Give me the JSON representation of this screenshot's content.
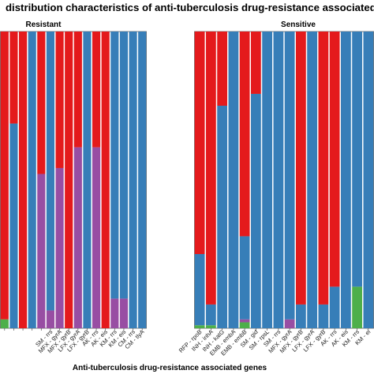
{
  "chart_data": {
    "type": "bar",
    "stacked": true,
    "normalized": true,
    "title": "distribution characteristics of anti-tuberculosis drug-resistance associated genes",
    "xlabel": "Anti-tuberculosis drug-resistance associated genes",
    "ylim": [
      0,
      1
    ],
    "grid": false,
    "panels": [
      {
        "name": "Resistant",
        "categories": [
          "",
          "",
          "",
          "",
          "",
          "SM - rrs",
          "MFX - gyrA",
          "MFX - gyrB",
          "LFX - gyrA",
          "LFX - gyrB",
          "AK - rrs",
          "AK - eis",
          "KM - rrs",
          "KM - eis",
          "CM - rrs",
          "CM - tlyA"
        ],
        "tick_labels": [
          "",
          "",
          "",
          "",
          "",
          "SM - rrs",
          "MFX - gyrA",
          "MFX - gyrB",
          "LFX - gyrA",
          "LFX - gyrB",
          "AK - rrs",
          "AK - eis",
          "KM - rrs",
          "KM - eis",
          "CM - rrs",
          "CM - tlyA"
        ],
        "series": [
          {
            "color": "#4daf4a",
            "values": [
              0.03,
              0,
              0,
              0,
              0,
              0,
              0,
              0,
              0,
              0,
              0,
              0,
              0,
              0,
              0,
              0
            ]
          },
          {
            "color": "#984ea3",
            "values": [
              0,
              0,
              0,
              0,
              0.52,
              0.06,
              0.54,
              0,
              0.61,
              0,
              0.61,
              0,
              0.1,
              0.1,
              0,
              0
            ]
          },
          {
            "color": "#377eb8",
            "values": [
              0,
              0.69,
              0,
              1.0,
              0,
              0.94,
              0,
              0,
              0,
              1.0,
              0,
              0,
              0.9,
              0.9,
              1.0,
              1.0
            ]
          },
          {
            "color": "#e41a1c",
            "values": [
              0.97,
              0.31,
              1.0,
              0,
              0.48,
              0,
              0.46,
              1.0,
              0.39,
              0,
              0.39,
              1.0,
              0,
              0,
              0,
              0
            ]
          }
        ]
      },
      {
        "name": "Sensitive",
        "categories": [
          "RFP - rpoB",
          "INH - inhA",
          "INH - katG",
          "EMB - embA",
          "EMB - embB",
          "SM - gid",
          "SM - rpsL",
          "SM - rrs",
          "MFX - gyrA",
          "MFX - gyrB",
          "LFX - gyrA",
          "LFX - gyrB",
          "AK - rrs",
          "AK - eis",
          "KM - rrs",
          "KM - eis"
        ],
        "tick_labels": [
          "RFP - rpoB",
          "INH - inhA",
          "INH - katG",
          "EMB - embA",
          "EMB - embB",
          "SM - gid",
          "SM - rpsL",
          "SM - rrs",
          "MFX - gyrA",
          "MFX - gyrB",
          "LFX - gyrA",
          "LFX - gyrB",
          "AK - rrs",
          "AK - eis",
          "KM - rrs",
          "KM - ei"
        ],
        "series": [
          {
            "color": "#4daf4a",
            "values": [
              0.01,
              0.01,
              0,
              0,
              0.02,
              0,
              0,
              0,
              0,
              0,
              0,
              0,
              0,
              0,
              0.14,
              0
            ]
          },
          {
            "color": "#984ea3",
            "values": [
              0,
              0,
              0,
              0,
              0.01,
              0,
              0,
              0,
              0.03,
              0,
              0,
              0,
              0,
              0,
              0,
              0
            ]
          },
          {
            "color": "#377eb8",
            "values": [
              0.24,
              0.07,
              0.75,
              1.0,
              0.28,
              0.79,
              1.0,
              1.0,
              0.97,
              0.08,
              1.0,
              0.08,
              0.14,
              1.0,
              0.86,
              1.0
            ]
          },
          {
            "color": "#e41a1c",
            "values": [
              0.75,
              0.92,
              0.25,
              0,
              0.69,
              0.21,
              0,
              0,
              0,
              0.92,
              0,
              0.92,
              0.86,
              0,
              0,
              0
            ]
          }
        ]
      }
    ]
  }
}
